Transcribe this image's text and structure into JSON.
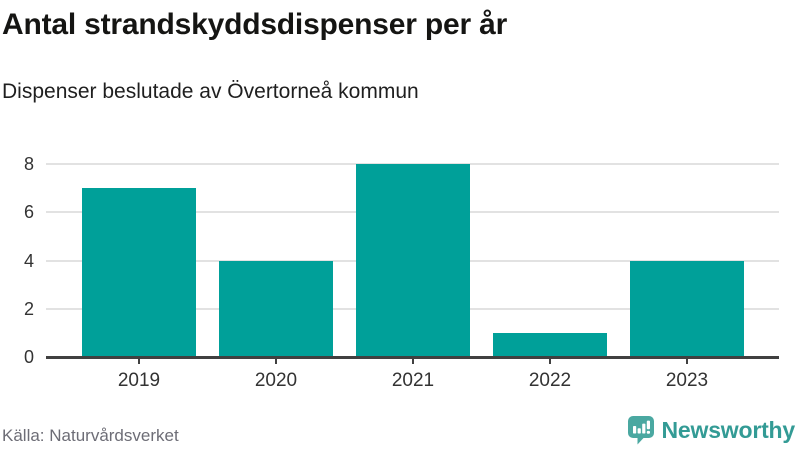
{
  "header": {
    "title": "Antal strandskyddsdispenser per år",
    "subtitle": "Dispenser beslutade av Övertorneå kommun"
  },
  "chart_data": {
    "type": "bar",
    "title": "Antal strandskyddsdispenser per år",
    "subtitle": "Dispenser beslutade av Övertorneå kommun",
    "categories": [
      "2019",
      "2020",
      "2021",
      "2022",
      "2023"
    ],
    "values": [
      7,
      4,
      8,
      1,
      4
    ],
    "xlabel": "",
    "ylabel": "",
    "ylim": [
      0,
      8
    ],
    "yticks": [
      0,
      2,
      4,
      6,
      8
    ],
    "grid": true,
    "legend": "none",
    "bar_color": "#00A099"
  },
  "footer": {
    "source": "Källa: Naturvårdsverket",
    "brand_name": "Newsworthy"
  },
  "icons": {
    "brand_mark": "bar-chart-in-speech-bubble-with-exclamation"
  },
  "colors": {
    "bar": "#00A099",
    "gridline": "#e2e2e2",
    "axis_line": "#404040",
    "axis_text": "#333333",
    "title_text": "#151513",
    "subtitle_text": "#1f1f1f",
    "source_text": "#6d6d76",
    "brand_mark": "#4AA8A1",
    "brand_text": "#339B95"
  }
}
